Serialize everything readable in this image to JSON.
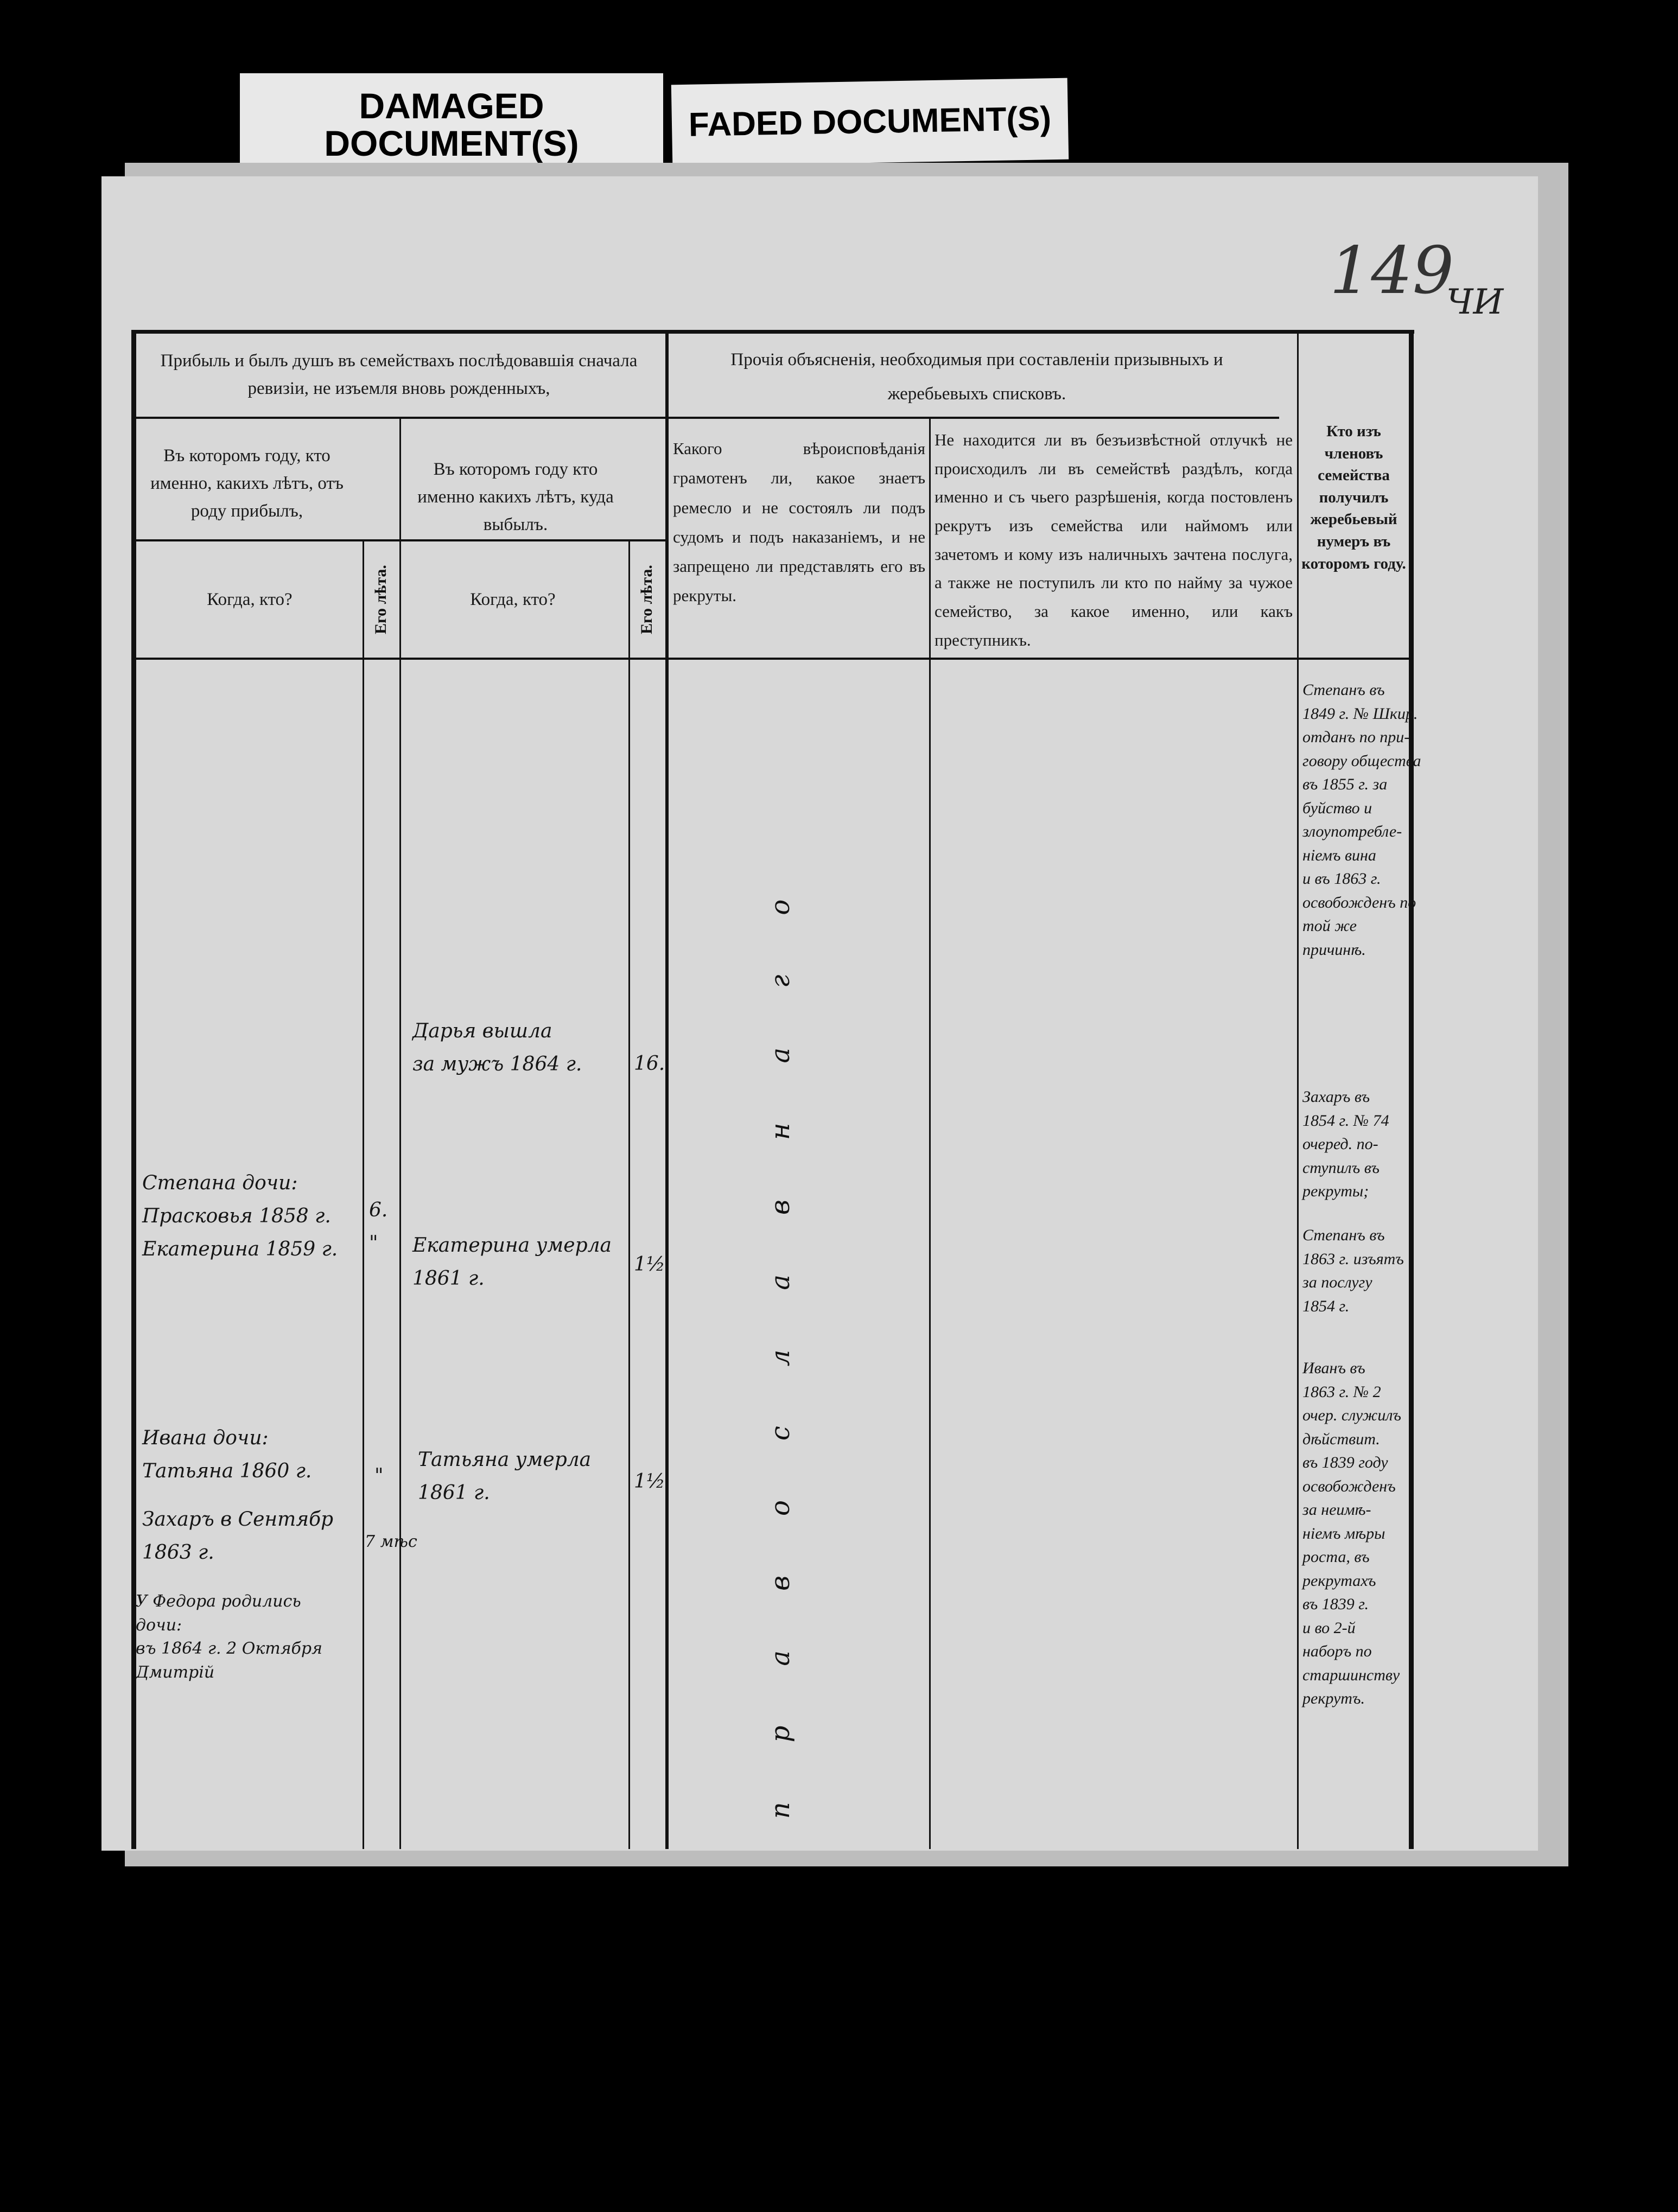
{
  "labels": {
    "damaged": "DAMAGED DOCUMENT(S)",
    "faded": "FADED DOCUMENT(S)"
  },
  "page_number": "149",
  "archive_mark": "ЧИ",
  "header": {
    "group_left": "Прибыль и былъ душъ въ семействахъ послѣдовавшія сначала ревизіи, не изъемля вновь рожденныхъ,",
    "arrived": "Въ которомъ году, кто именно, какихъ лѣтъ, отъ роду прибылъ,",
    "departed": "Въ которомъ году кто именно какихъ лѣтъ, куда выбылъ.",
    "when_who": "Когда, кто?",
    "age": "Его лѣта.",
    "group_right": "Прочія объясненія, необходимыя при составленіи призывныхъ и жеребьевыхъ списковъ.",
    "religion": "Какого вѣроисповѣданія грамотенъ ли, какое знаетъ ремесло и не состоялъ ли подъ судомъ и подъ наказаніемъ, и не запрещено ли представлять его въ рекруты.",
    "absence": "Не находится ли въ безъизвѣстной отлучкѣ не происходилъ ли въ семействѣ раздѣлъ, когда именно и съ чьего разрѣшенія, когда постовленъ рекрутъ изъ семейства или наймомъ или зачетомъ и кому изъ наличныхъ зачтена послуга, а также не поступилъ ли кто по найму за чужое семейство, за какое именно, или какъ преступникъ.",
    "lot": "Кто изъ членовъ семейства получилъ жеребьевый нумеръ въ которомъ году."
  },
  "entries": {
    "arrived": [
      {
        "who": "Степана дочи:\nПрасковья 1858 г.\nЕкатерина 1859 г.",
        "age": "6.\n\""
      },
      {
        "who": "Ивана дочи:\nТатьяна 1860 г.",
        "age": "\""
      },
      {
        "who": "Захаръ в Сентябр\n1863 г.",
        "age": "7 мѣс"
      },
      {
        "who": "У Федора родились\nдочи:\nвъ 1864 г. 2 Октября Дмитрiй",
        "age": ""
      }
    ],
    "departed": [
      {
        "who": "Дарья вышла\nза мужъ 1864 г.",
        "age": "16."
      },
      {
        "who": "Екатерина умерла\n1861 г.",
        "age": "1½"
      },
      {
        "who": "Татьяна умерла\n1861 г.",
        "age": "1½"
      }
    ],
    "religion_note": "православнаго",
    "lot": [
      "Степанъ въ\n1849 г. № Шкир.\nотданъ по при-\nговору общества\nвъ 1855 г. за\nбуйство и\nзлоупотребле-\nнiемъ вина\nи въ 1863 г.\nосвобожденъ по\nтой же\nпричинѣ.",
      "Захаръ въ\n1854 г. № 74\nочеред. по-\nступилъ въ\nрекруты;",
      "Степанъ въ\n1863 г. изъятъ\nза послугу\n1854 г.",
      "Иванъ въ\n1863 г. № 2\nочер. служилъ\nдѣйствит.\nвъ 1839 году\nосвобожденъ\nза неимѣ-\nнiемъ мѣры\nроста, въ\nрекрутахъ\nвъ 1839 г.\nи во 2-й\nнаборъ по\nстаршинству\nрекрутъ."
    ]
  }
}
